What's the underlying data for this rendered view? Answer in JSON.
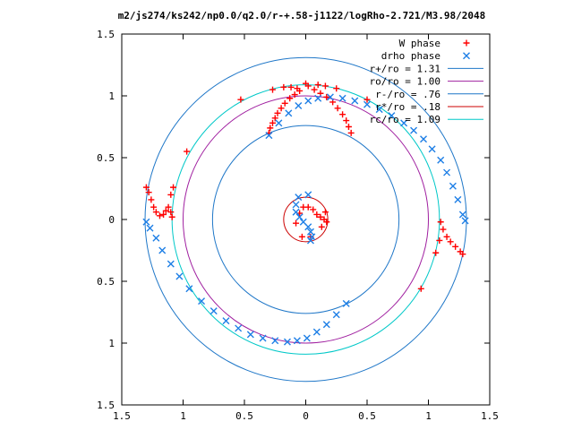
{
  "chart_data": {
    "type": "scatter",
    "title": "m2/js274/ks242/np0.0/q2.0/r-+.58-j1122/logRho-2.721/M3.98/2048",
    "xlim": [
      -1.5,
      1.5
    ],
    "ylim": [
      -1.5,
      1.5
    ],
    "xticks": [
      -1.5,
      -1,
      -0.5,
      0,
      0.5,
      1,
      1.5
    ],
    "yticks": [
      -1.5,
      -1,
      -0.5,
      0,
      0.5,
      1,
      1.5
    ],
    "xtick_labels": [
      "1.5",
      "1",
      "0.5",
      "0",
      "0.5",
      "1",
      "1.5"
    ],
    "ytick_labels": [
      "1.5",
      "1",
      "0.5",
      "0",
      "0.5",
      "1",
      "1.5"
    ],
    "grid": false,
    "legend_position": "top-right",
    "series": [
      {
        "name": "W phase",
        "kind": "points",
        "marker": "plus",
        "color": "#ff0000",
        "points": [
          [
            -0.3,
            0.7
          ],
          [
            -0.29,
            0.74
          ],
          [
            -0.27,
            0.78
          ],
          [
            -0.25,
            0.82
          ],
          [
            -0.23,
            0.86
          ],
          [
            -0.2,
            0.9
          ],
          [
            -0.17,
            0.94
          ],
          [
            -0.13,
            0.98
          ],
          [
            -0.09,
            1.01
          ],
          [
            -0.05,
            1.04
          ],
          [
            -0.18,
            1.07
          ],
          [
            -0.12,
            1.07
          ],
          [
            -0.07,
            1.06
          ],
          [
            -0.27,
            1.05
          ],
          [
            -0.53,
            0.97
          ],
          [
            -0.97,
            0.55
          ],
          [
            -1.08,
            0.26
          ],
          [
            -1.1,
            0.2
          ],
          [
            -1.3,
            0.26
          ],
          [
            -1.28,
            0.22
          ],
          [
            -1.26,
            0.16
          ],
          [
            -1.24,
            0.1
          ],
          [
            -1.22,
            0.06
          ],
          [
            -1.19,
            0.03
          ],
          [
            -1.16,
            0.04
          ],
          [
            -1.14,
            0.07
          ],
          [
            -1.12,
            0.1
          ],
          [
            -1.1,
            0.06
          ],
          [
            -1.09,
            0.02
          ],
          [
            1.1,
            -0.02
          ],
          [
            1.12,
            -0.08
          ],
          [
            1.15,
            -0.14
          ],
          [
            1.18,
            -0.18
          ],
          [
            1.22,
            -0.22
          ],
          [
            1.26,
            -0.26
          ],
          [
            1.28,
            -0.28
          ],
          [
            1.09,
            -0.17
          ],
          [
            1.06,
            -0.27
          ],
          [
            0.94,
            -0.56
          ],
          [
            0.37,
            0.7
          ],
          [
            0.35,
            0.75
          ],
          [
            0.33,
            0.8
          ],
          [
            0.3,
            0.85
          ],
          [
            0.26,
            0.9
          ],
          [
            0.22,
            0.95
          ],
          [
            0.17,
            0.99
          ],
          [
            0.12,
            1.02
          ],
          [
            0.07,
            1.05
          ],
          [
            0.02,
            1.08
          ],
          [
            0.0,
            1.1
          ],
          [
            0.1,
            1.09
          ],
          [
            0.16,
            1.08
          ],
          [
            0.25,
            1.06
          ],
          [
            0.5,
            0.97
          ],
          [
            -0.08,
            -0.03
          ],
          [
            -0.05,
            0.05
          ],
          [
            -0.02,
            0.1
          ],
          [
            0.02,
            0.1
          ],
          [
            0.06,
            0.08
          ],
          [
            0.09,
            0.04
          ],
          [
            0.12,
            0.02
          ],
          [
            0.15,
            0.0
          ],
          [
            0.17,
            -0.02
          ],
          [
            0.16,
            0.06
          ],
          [
            0.13,
            -0.06
          ],
          [
            0.04,
            -0.14
          ],
          [
            -0.03,
            -0.14
          ]
        ]
      },
      {
        "name": "drho phase",
        "kind": "points",
        "marker": "x",
        "color": "#1e7fe6",
        "points": [
          [
            -0.3,
            0.68
          ],
          [
            -0.22,
            0.78
          ],
          [
            -0.14,
            0.86
          ],
          [
            -0.06,
            0.92
          ],
          [
            0.02,
            0.96
          ],
          [
            0.1,
            0.98
          ],
          [
            0.2,
            0.99
          ],
          [
            0.3,
            0.98
          ],
          [
            0.4,
            0.96
          ],
          [
            0.5,
            0.93
          ],
          [
            0.6,
            0.89
          ],
          [
            0.7,
            0.84
          ],
          [
            0.8,
            0.78
          ],
          [
            0.88,
            0.72
          ],
          [
            0.96,
            0.65
          ],
          [
            1.03,
            0.57
          ],
          [
            1.1,
            0.48
          ],
          [
            1.15,
            0.38
          ],
          [
            1.2,
            0.27
          ],
          [
            1.24,
            0.16
          ],
          [
            1.28,
            0.04
          ],
          [
            1.3,
            -0.01
          ],
          [
            0.33,
            -0.68
          ],
          [
            0.25,
            -0.77
          ],
          [
            0.17,
            -0.85
          ],
          [
            0.09,
            -0.91
          ],
          [
            0.01,
            -0.96
          ],
          [
            -0.07,
            -0.98
          ],
          [
            -0.15,
            -0.99
          ],
          [
            -0.25,
            -0.98
          ],
          [
            -0.35,
            -0.96
          ],
          [
            -0.45,
            -0.93
          ],
          [
            -0.55,
            -0.88
          ],
          [
            -0.65,
            -0.82
          ],
          [
            -0.75,
            -0.74
          ],
          [
            -0.85,
            -0.66
          ],
          [
            -0.95,
            -0.56
          ],
          [
            -1.03,
            -0.46
          ],
          [
            -1.1,
            -0.36
          ],
          [
            -1.17,
            -0.25
          ],
          [
            -1.22,
            -0.15
          ],
          [
            -1.27,
            -0.07
          ],
          [
            -1.3,
            -0.02
          ],
          [
            -0.06,
            0.18
          ],
          [
            -0.08,
            0.12
          ],
          [
            -0.08,
            0.06
          ],
          [
            -0.05,
            0.02
          ],
          [
            -0.02,
            -0.02
          ],
          [
            0.02,
            -0.06
          ],
          [
            0.04,
            -0.1
          ],
          [
            0.05,
            -0.14
          ],
          [
            0.04,
            -0.17
          ],
          [
            0.02,
            0.2
          ]
        ]
      },
      {
        "name": "r+/ro = 1.31",
        "kind": "circle",
        "radius": 1.31,
        "color": "#1f77c8"
      },
      {
        "name": "ro/ro = 1.00",
        "kind": "circle",
        "radius": 1.0,
        "color": "#a020a0"
      },
      {
        "name": "r-/ro = .76",
        "kind": "circle",
        "radius": 0.76,
        "color": "#1f77c8"
      },
      {
        "name": "r*/ro = .18",
        "kind": "circle",
        "radius": 0.18,
        "color": "#cc0000"
      },
      {
        "name": "rc/ro = 1.09",
        "kind": "circle",
        "radius": 1.09,
        "color": "#00c8c8"
      }
    ]
  }
}
